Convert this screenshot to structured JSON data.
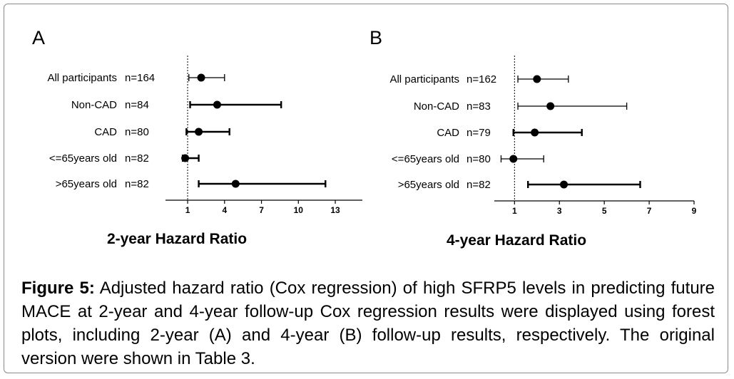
{
  "chart_data": [
    {
      "type": "forest",
      "panel": "A",
      "xlabel": "2-year Hazard Ratio",
      "xticks": [
        "1",
        "4",
        "7",
        "10",
        "13"
      ],
      "xlim": [
        -0.8,
        15.2
      ],
      "reference_line": 1,
      "rows": [
        {
          "label": "All participants",
          "n": "n=164",
          "hr": 2.1,
          "low": 1.1,
          "high": 4.0,
          "bold": false
        },
        {
          "label": "Non-CAD",
          "n": "n=84",
          "hr": 3.4,
          "low": 1.2,
          "high": 8.6,
          "bold": true
        },
        {
          "label": "CAD",
          "n": "n=80",
          "hr": 1.9,
          "low": 0.9,
          "high": 4.4,
          "bold": true
        },
        {
          "label": "<=65years old",
          "n": "n=82",
          "hr": 0.8,
          "low": 0.6,
          "high": 1.9,
          "bold": true
        },
        {
          "label": ">65years old",
          "n": "n=82",
          "hr": 4.9,
          "low": 1.9,
          "high": 12.2,
          "bold": true
        }
      ]
    },
    {
      "type": "forest",
      "panel": "B",
      "xlabel": "4-year Hazard Ratio",
      "xticks": [
        "1",
        "3",
        "5",
        "7",
        "9"
      ],
      "xlim": [
        0.1,
        9.0
      ],
      "reference_line": 1,
      "rows": [
        {
          "label": "All participants",
          "n": "n=162",
          "hr": 2.0,
          "low": 1.15,
          "high": 3.4,
          "bold": false
        },
        {
          "label": "Non-CAD",
          "n": "n=83",
          "hr": 2.6,
          "low": 1.15,
          "high": 6.0,
          "bold": false
        },
        {
          "label": "CAD",
          "n": "n=79",
          "hr": 1.9,
          "low": 0.95,
          "high": 4.0,
          "bold": true
        },
        {
          "label": "<=65years old",
          "n": "n=80",
          "hr": 0.95,
          "low": 0.4,
          "high": 2.3,
          "bold": false
        },
        {
          "label": ">65years old",
          "n": "n=82",
          "hr": 3.2,
          "low": 1.6,
          "high": 6.6,
          "bold": true
        }
      ]
    }
  ],
  "caption": {
    "lead": "Figure 5:",
    "text": " Adjusted hazard ratio (Cox regression) of high SFRP5 levels in predicting future MACE at 2-year and 4-year follow-up Cox regression results were displayed using forest plots, including 2-year (A) and 4-year (B) follow-up results, respectively. The original version were shown in Table 3."
  }
}
